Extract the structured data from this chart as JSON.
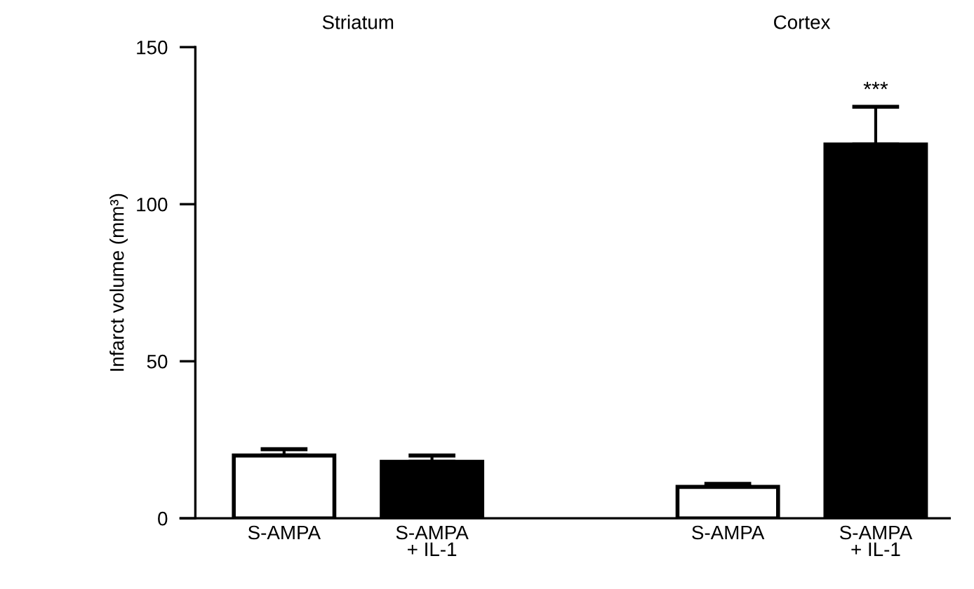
{
  "chart_data": {
    "type": "bar",
    "ylabel": "Infarct volume (mm³)",
    "categories": [
      "S-AMPA",
      "S-AMPA\n+ IL-1",
      null,
      "S-AMPA",
      "S-AMPA\n+ IL-1"
    ],
    "values": [
      20,
      18,
      null,
      10,
      119
    ],
    "errors": [
      2,
      2,
      null,
      1,
      12
    ],
    "colors": [
      "#ffffff",
      "#000000",
      null,
      "#ffffff",
      "#000000"
    ],
    "value_labels": [
      null,
      null,
      null,
      null,
      "***"
    ],
    "annotations": [
      "Striatum",
      "Cortex"
    ],
    "ylim": [
      0,
      150
    ],
    "yticks": [
      0,
      50,
      100,
      150
    ],
    "grid": false,
    "legend": false
  }
}
